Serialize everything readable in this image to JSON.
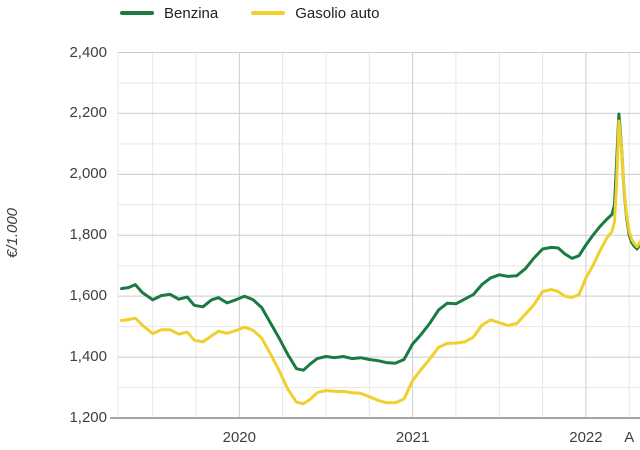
{
  "legend": {
    "position": "top"
  },
  "y_axis_title": "€/1.000",
  "chart_data": {
    "type": "line",
    "ylabel": "€/1.000",
    "ylim": [
      1200,
      2400
    ],
    "xlim": [
      2019.3,
      2022.312
    ],
    "grid": true,
    "legend_position": "top",
    "y_ticks": [
      {
        "label": "1,200",
        "value": 1200
      },
      {
        "label": "1,400",
        "value": 1400
      },
      {
        "label": "1,600",
        "value": 1600
      },
      {
        "label": "1,800",
        "value": 1800
      },
      {
        "label": "2,000",
        "value": 2000
      },
      {
        "label": "2,200",
        "value": 2200
      },
      {
        "label": "2,400",
        "value": 2400
      }
    ],
    "y_minor_step": 100,
    "x_ticks": [
      {
        "label": "2020",
        "x": 2020
      },
      {
        "label": "2021",
        "x": 2021
      },
      {
        "label": "2022",
        "x": 2022
      },
      {
        "label": "A",
        "x": 2022.25
      }
    ],
    "x_minor_step": 0.25,
    "colors": {
      "major_grid": "#cccccc",
      "minor_grid": "#e7e7e7",
      "baseline": "#a6a6a6",
      "tick_text": "#3c4043"
    },
    "x": [
      2019.32,
      2019.36,
      2019.4,
      2019.44,
      2019.5,
      2019.55,
      2019.6,
      2019.65,
      2019.7,
      2019.74,
      2019.79,
      2019.84,
      2019.88,
      2019.93,
      2019.98,
      2020.03,
      2020.08,
      2020.13,
      2020.18,
      2020.23,
      2020.28,
      2020.33,
      2020.37,
      2020.41,
      2020.45,
      2020.5,
      2020.55,
      2020.6,
      2020.65,
      2020.7,
      2020.75,
      2020.8,
      2020.85,
      2020.9,
      2020.95,
      2021.0,
      2021.05,
      2021.1,
      2021.15,
      2021.2,
      2021.25,
      2021.3,
      2021.35,
      2021.4,
      2021.45,
      2021.5,
      2021.55,
      2021.6,
      2021.65,
      2021.7,
      2021.75,
      2021.8,
      2021.84,
      2021.88,
      2021.92,
      2021.96,
      2022.0,
      2022.04,
      2022.08,
      2022.12,
      2022.15,
      2022.165,
      2022.175,
      2022.19,
      2022.205,
      2022.22,
      2022.235,
      2022.25,
      2022.265,
      2022.28,
      2022.295,
      2022.312
    ],
    "series": [
      {
        "name": "Benzina",
        "color": "#1a7a42",
        "values": [
          1625,
          1628,
          1638,
          1612,
          1588,
          1602,
          1606,
          1590,
          1597,
          1570,
          1565,
          1588,
          1595,
          1578,
          1588,
          1600,
          1588,
          1562,
          1512,
          1462,
          1408,
          1362,
          1357,
          1378,
          1395,
          1402,
          1398,
          1402,
          1395,
          1398,
          1392,
          1388,
          1382,
          1380,
          1392,
          1443,
          1475,
          1512,
          1555,
          1577,
          1575,
          1590,
          1605,
          1638,
          1660,
          1670,
          1665,
          1667,
          1690,
          1725,
          1755,
          1760,
          1758,
          1738,
          1724,
          1733,
          1768,
          1800,
          1828,
          1852,
          1868,
          1900,
          2020,
          2198,
          2090,
          1945,
          1855,
          1800,
          1775,
          1763,
          1755,
          1770
        ]
      },
      {
        "name": "Gasolio auto",
        "color": "#f0d02e",
        "values": [
          1520,
          1523,
          1528,
          1505,
          1477,
          1490,
          1490,
          1475,
          1482,
          1455,
          1450,
          1470,
          1485,
          1478,
          1487,
          1498,
          1488,
          1462,
          1410,
          1355,
          1295,
          1252,
          1247,
          1262,
          1283,
          1290,
          1288,
          1287,
          1283,
          1281,
          1270,
          1258,
          1250,
          1250,
          1262,
          1323,
          1360,
          1395,
          1432,
          1445,
          1446,
          1450,
          1465,
          1505,
          1522,
          1513,
          1504,
          1510,
          1540,
          1572,
          1615,
          1622,
          1615,
          1600,
          1596,
          1605,
          1660,
          1700,
          1748,
          1790,
          1812,
          1845,
          1950,
          2175,
          2085,
          1950,
          1865,
          1812,
          1785,
          1772,
          1762,
          1778
        ]
      }
    ]
  }
}
